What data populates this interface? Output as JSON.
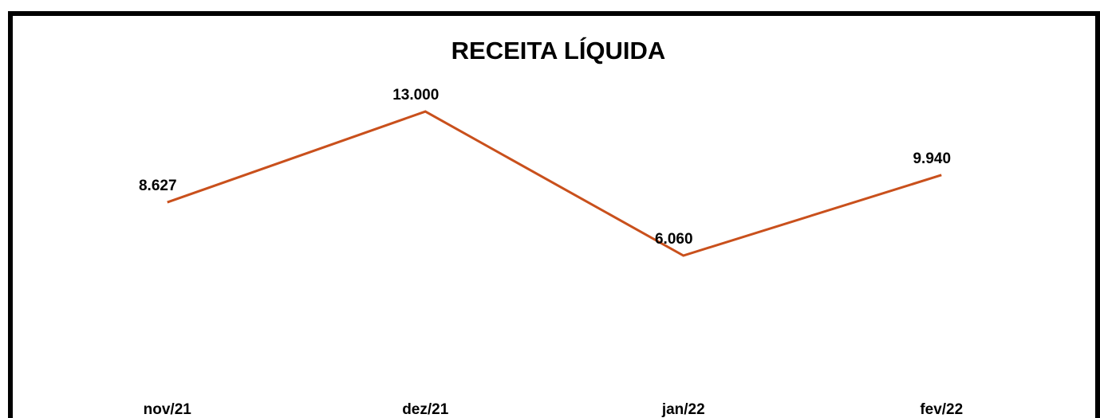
{
  "chart_data": {
    "type": "line",
    "title": "RECEITA LÍQUIDA",
    "categories": [
      "nov/21",
      "dez/21",
      "jan/22",
      "fev/22"
    ],
    "series": [
      {
        "name": "Receita Líquida",
        "color": "#c9501c",
        "values": [
          8627,
          13000,
          6060,
          9940
        ],
        "value_labels": [
          "8.627",
          "13.000",
          "6.060",
          "9.940"
        ]
      }
    ],
    "ylim": [
      0,
      14000
    ]
  }
}
